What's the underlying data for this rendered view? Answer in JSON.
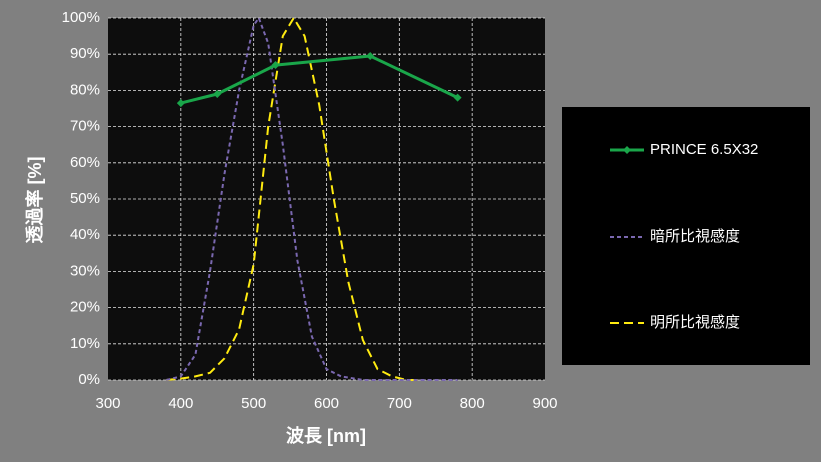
{
  "chart_data": {
    "type": "line",
    "xlabel": "波長 [nm]",
    "ylabel": "透過率 [%]",
    "xlim": [
      300,
      900
    ],
    "xticks": [
      300,
      400,
      500,
      600,
      700,
      800,
      900
    ],
    "ylim": [
      0,
      100
    ],
    "yticks": [
      {
        "value": 0,
        "label": "0%"
      },
      {
        "value": 10,
        "label": "10%"
      },
      {
        "value": 20,
        "label": "20%"
      },
      {
        "value": 30,
        "label": "30%"
      },
      {
        "value": 40,
        "label": "40%"
      },
      {
        "value": 50,
        "label": "50%"
      },
      {
        "value": 60,
        "label": "60%"
      },
      {
        "value": 70,
        "label": "70%"
      },
      {
        "value": 80,
        "label": "80%"
      },
      {
        "value": 90,
        "label": "90%"
      },
      {
        "value": 100,
        "label": "100%"
      }
    ],
    "grid": true,
    "legend": "right",
    "series": [
      {
        "name": "PRINCE 6.5X32",
        "color": "#1aa64a",
        "line_style": "solid",
        "marker": "diamond",
        "x": [
          400,
          450,
          530,
          660,
          780
        ],
        "values": [
          76.5,
          79,
          87,
          89.5,
          78
        ]
      },
      {
        "name": "暗所比視感度",
        "color": "#7a68b0",
        "line_style": "dashed",
        "x": [
          380,
          400,
          420,
          440,
          460,
          480,
          500,
          507,
          520,
          540,
          560,
          580,
          600,
          620,
          650,
          700,
          780
        ],
        "values": [
          0,
          1,
          7,
          30,
          57,
          80,
          98,
          100,
          93,
          65,
          33,
          12,
          3,
          1,
          0,
          0,
          0
        ]
      },
      {
        "name": "明所比視感度",
        "color": "#ffeb10",
        "line_style": "dashed",
        "x": [
          380,
          400,
          420,
          440,
          460,
          480,
          500,
          520,
          540,
          555,
          570,
          590,
          610,
          630,
          650,
          670,
          690,
          710,
          730
        ],
        "values": [
          0,
          0.4,
          1,
          2,
          6,
          14,
          32,
          70,
          95,
          100,
          95,
          76,
          50,
          27,
          11,
          3,
          1,
          0,
          0
        ]
      }
    ]
  }
}
